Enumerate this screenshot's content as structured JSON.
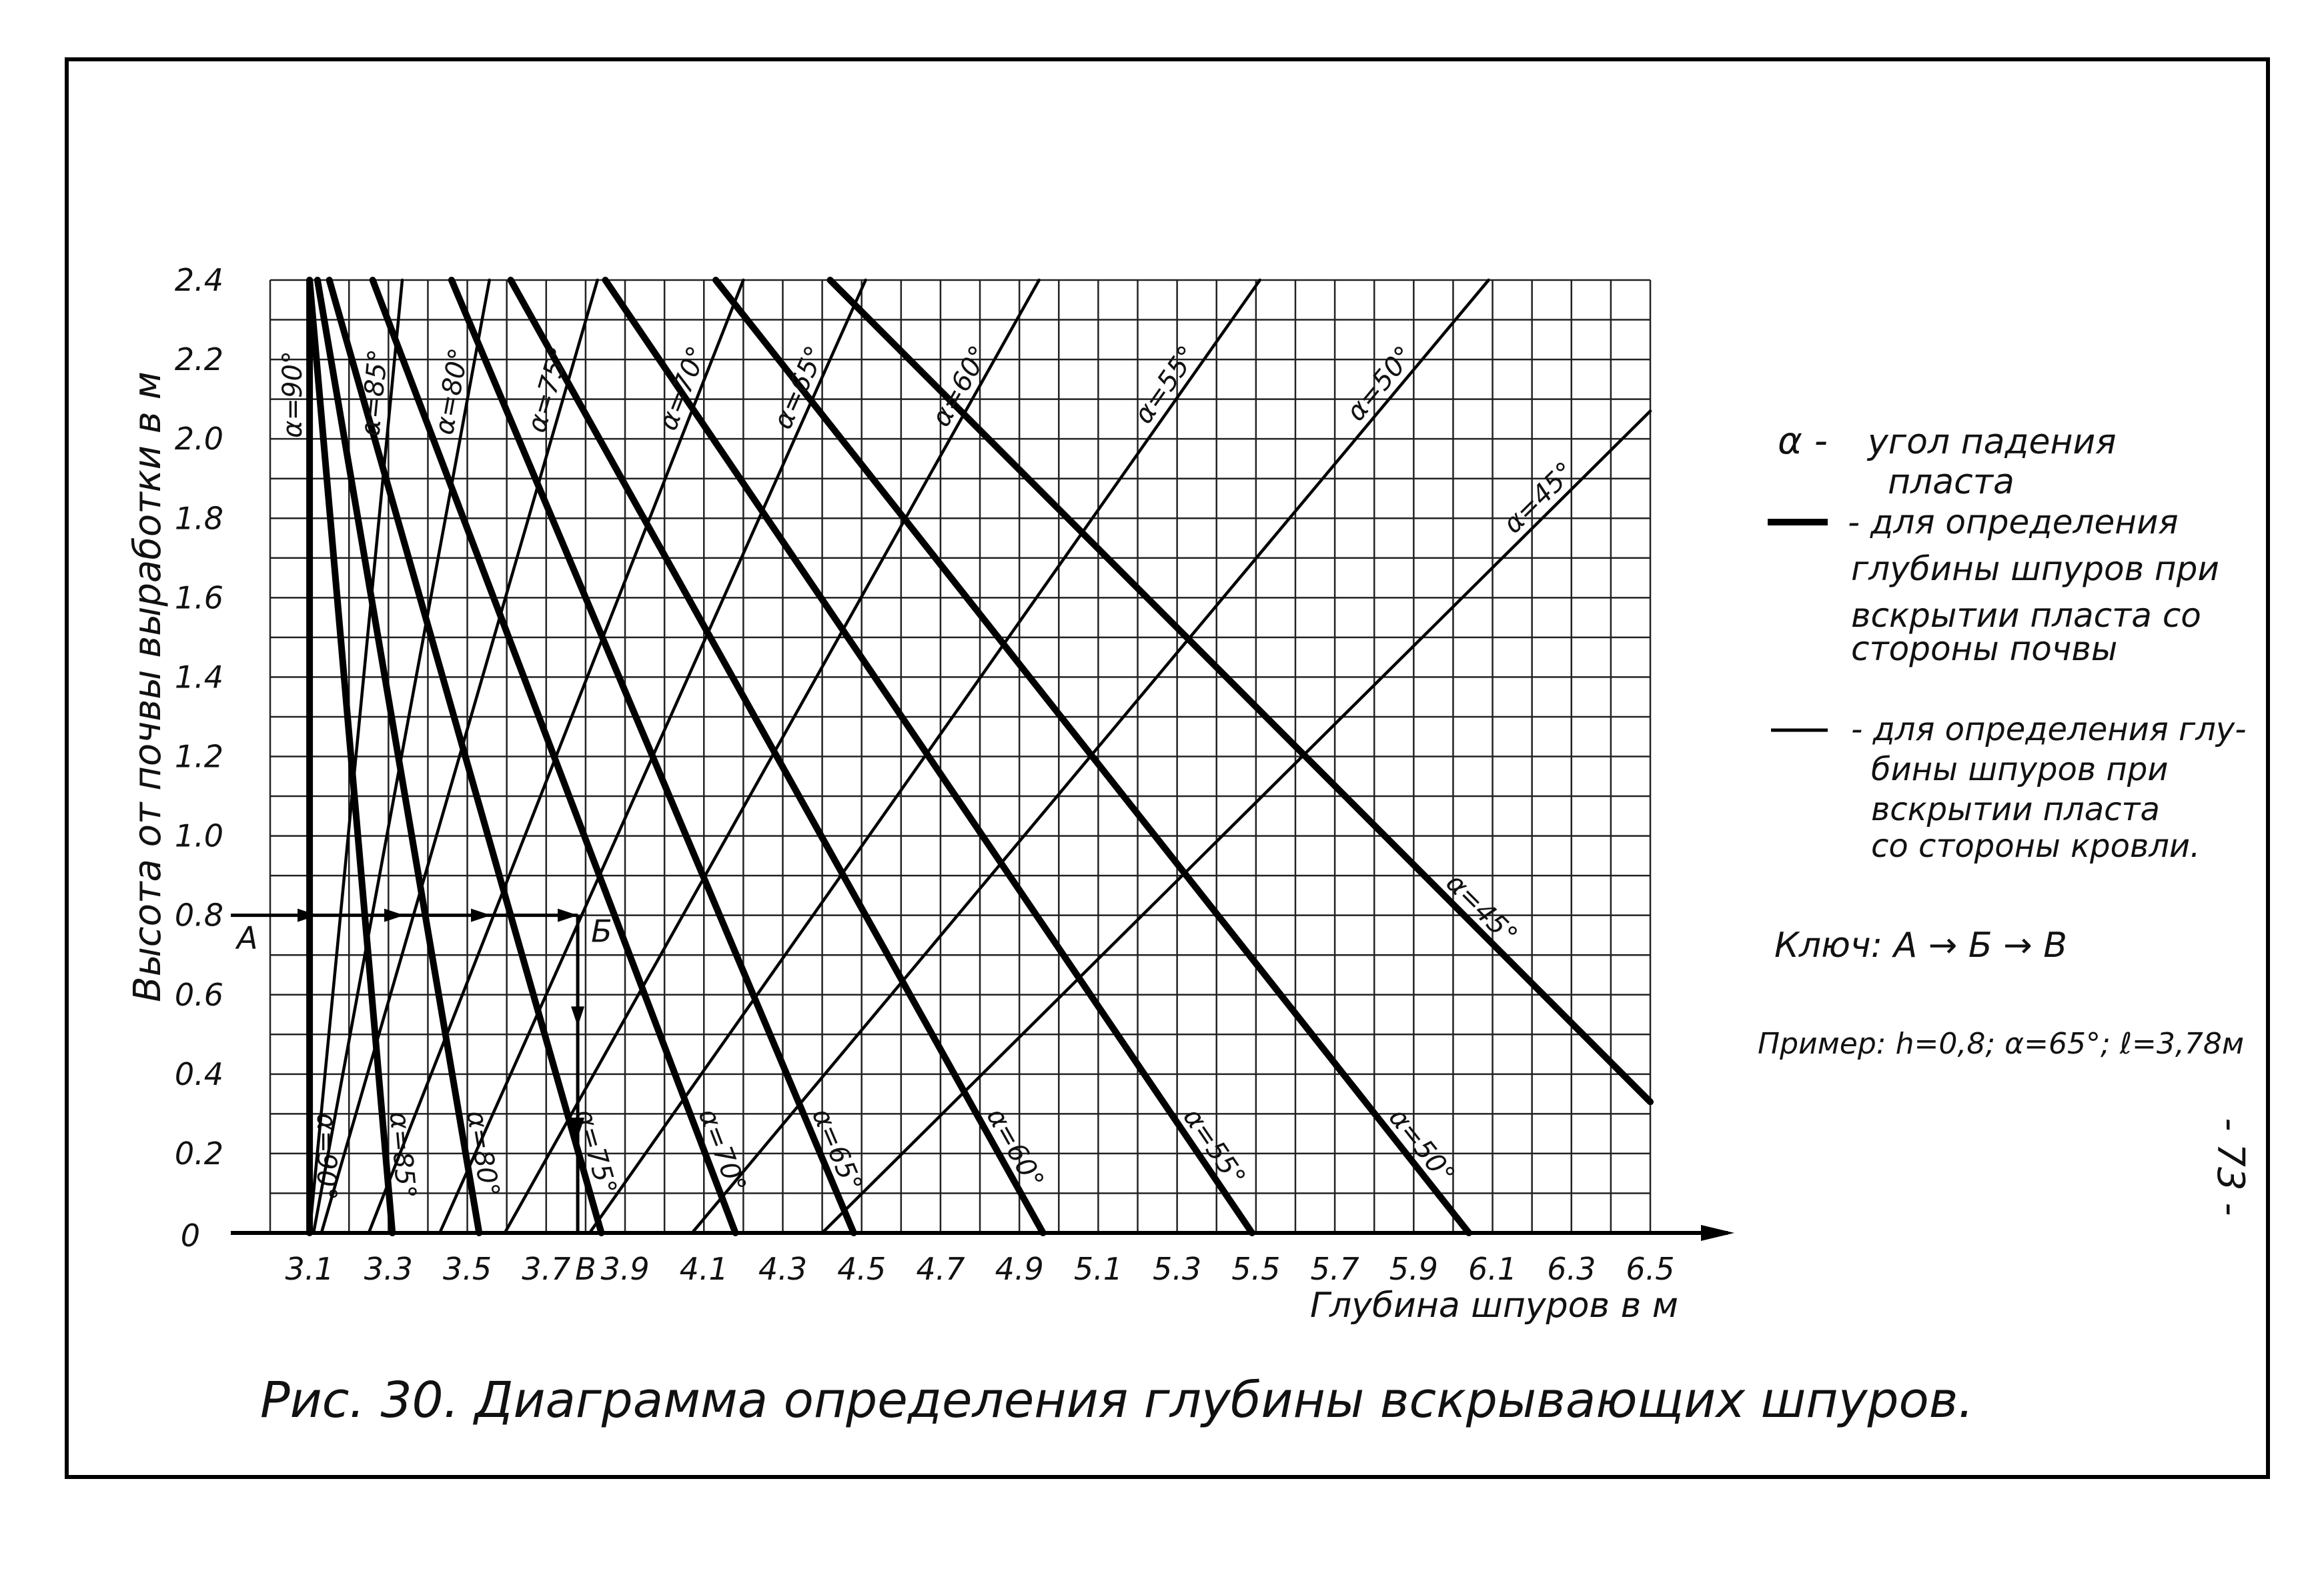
{
  "page_number": "- 73 -",
  "caption": "Рис. 30. Диаграмма определения глубины вскрывающих шпуров.",
  "legend": {
    "alpha_symbol": "α -",
    "alpha_text_1": "угол падения",
    "alpha_text_2": "пласта",
    "thick_text": [
      "- для определения",
      "глубины шпуров при",
      "вскрытии пласта со",
      "стороны почвы"
    ],
    "thin_text": [
      "- для определения глу-",
      "бины шпуров при",
      "вскрытии пласта",
      "со стороны кровли."
    ],
    "key": "Ключ: А → Б → В",
    "example": "Пример: h=0,8; α=65°; ℓ=3,78м"
  },
  "chart_data": {
    "type": "line",
    "xlabel": "Глубина шпуров в м",
    "ylabel": "Высота от почвы выработки в м",
    "xlim": [
      3.0,
      6.5
    ],
    "ylim": [
      0,
      2.4
    ],
    "grid": true,
    "grid_step": 0.1,
    "x_ticks": [
      "3.1",
      "3.3",
      "3.5",
      "3.7",
      "3.9",
      "4.1",
      "4.3",
      "4.5",
      "4.7",
      "4.9",
      "5.1",
      "5.3",
      "5.5",
      "5.7",
      "5.9",
      "6.1",
      "6.3",
      "6.5"
    ],
    "x_tick_values": [
      3.1,
      3.3,
      3.5,
      3.7,
      3.9,
      4.1,
      4.3,
      4.5,
      4.7,
      4.9,
      5.1,
      5.3,
      5.5,
      5.7,
      5.9,
      6.1,
      6.3,
      6.5
    ],
    "y_ticks": [
      "0",
      "0.2",
      "0.4",
      "0.6",
      "0.8",
      "1.0",
      "1.2",
      "1.4",
      "1.6",
      "1.8",
      "2.0",
      "2.2",
      "2.4"
    ],
    "y_tick_values": [
      0,
      0.2,
      0.4,
      0.6,
      0.8,
      1.0,
      1.2,
      1.4,
      1.6,
      1.8,
      2.0,
      2.2,
      2.4
    ],
    "series": [
      {
        "style": "thick",
        "lines": [
          {
            "label": "α=90°",
            "alpha": 90,
            "points": [
              [
                3.1,
                0
              ],
              [
                3.1,
                2.4
              ]
            ]
          },
          {
            "label": "α=85°",
            "alpha": 85,
            "points": [
              [
                3.31,
                0
              ],
              [
                3.1,
                2.4
              ]
            ]
          },
          {
            "label": "α=80°",
            "alpha": 80,
            "points": [
              [
                3.53,
                0
              ],
              [
                3.12,
                2.4
              ]
            ]
          },
          {
            "label": "α=75°",
            "alpha": 75,
            "points": [
              [
                3.84,
                0
              ],
              [
                3.15,
                2.4
              ]
            ]
          },
          {
            "label": "α=70°",
            "alpha": 70,
            "points": [
              [
                4.18,
                0
              ],
              [
                3.26,
                2.4
              ]
            ]
          },
          {
            "label": "α=65°",
            "alpha": 65,
            "points": [
              [
                4.48,
                0
              ],
              [
                3.46,
                2.4
              ]
            ]
          },
          {
            "label": "α=60°",
            "alpha": 60,
            "points": [
              [
                4.96,
                0
              ],
              [
                3.61,
                2.4
              ]
            ]
          },
          {
            "label": "α=55°",
            "alpha": 55,
            "points": [
              [
                5.49,
                0
              ],
              [
                3.85,
                2.4
              ]
            ]
          },
          {
            "label": "α=50°",
            "alpha": 50,
            "points": [
              [
                6.04,
                0
              ],
              [
                4.13,
                2.4
              ]
            ]
          },
          {
            "label": "α=45°",
            "alpha": 45,
            "points": [
              [
                6.5,
                0.33
              ],
              [
                4.42,
                2.4
              ]
            ]
          }
        ]
      },
      {
        "style": "thin",
        "lines": [
          {
            "label": "α=90°",
            "alpha": 90,
            "points": [
              [
                3.1,
                0
              ],
              [
                3.1,
                2.4
              ]
            ]
          },
          {
            "label": "α=85°",
            "alpha": 85,
            "points": [
              [
                3.1,
                0
              ],
              [
                3.335,
                2.4
              ]
            ]
          },
          {
            "label": "α=80°",
            "alpha": 80,
            "points": [
              [
                3.11,
                0
              ],
              [
                3.556,
                2.4
              ]
            ]
          },
          {
            "label": "α=75°",
            "alpha": 75,
            "points": [
              [
                3.13,
                0
              ],
              [
                3.83,
                2.4
              ]
            ]
          },
          {
            "label": "α=70°",
            "alpha": 70,
            "points": [
              [
                3.25,
                0
              ],
              [
                4.2,
                2.4
              ]
            ]
          },
          {
            "label": "α=65°",
            "alpha": 65,
            "points": [
              [
                3.43,
                0
              ],
              [
                4.51,
                2.4
              ]
            ]
          },
          {
            "label": "α=60°",
            "alpha": 60,
            "points": [
              [
                3.595,
                0
              ],
              [
                4.95,
                2.4
              ]
            ]
          },
          {
            "label": "α=55°",
            "alpha": 55,
            "points": [
              [
                3.81,
                0
              ],
              [
                5.51,
                2.4
              ]
            ]
          },
          {
            "label": "α=50°",
            "alpha": 50,
            "points": [
              [
                4.07,
                0
              ],
              [
                6.09,
                2.4
              ]
            ]
          },
          {
            "label": "α=45°",
            "alpha": 45,
            "points": [
              [
                4.4,
                0
              ],
              [
                6.5,
                2.07
              ]
            ]
          }
        ]
      }
    ],
    "key_path": {
      "labels": [
        "А",
        "Б",
        "В"
      ],
      "h": 0.8,
      "l": 3.78
    }
  }
}
